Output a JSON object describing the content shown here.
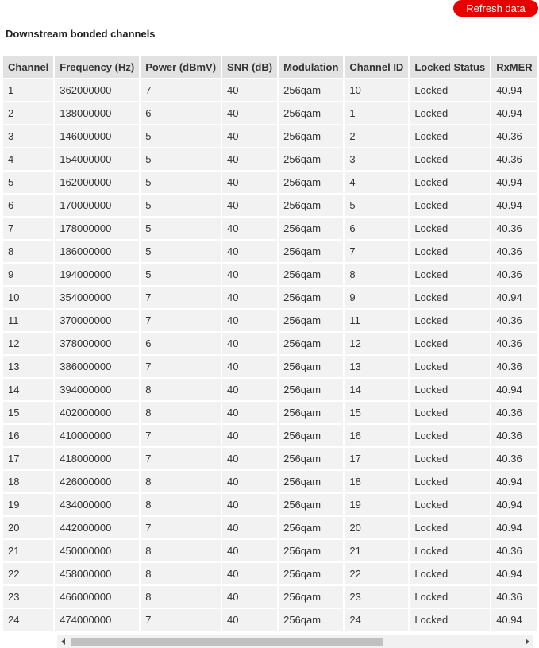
{
  "header": {
    "button": "Refresh data",
    "title": "Downstream bonded channels"
  },
  "table": {
    "columns": [
      "Channel",
      "Frequency (Hz)",
      "Power (dBmV)",
      "SNR (dB)",
      "Modulation",
      "Channel ID",
      "Locked Status",
      "RxMER"
    ],
    "rows": [
      [
        "1",
        "362000000",
        "7",
        "40",
        "256qam",
        "10",
        "Locked",
        "40.94"
      ],
      [
        "2",
        "138000000",
        "6",
        "40",
        "256qam",
        "1",
        "Locked",
        "40.94"
      ],
      [
        "3",
        "146000000",
        "5",
        "40",
        "256qam",
        "2",
        "Locked",
        "40.36"
      ],
      [
        "4",
        "154000000",
        "5",
        "40",
        "256qam",
        "3",
        "Locked",
        "40.36"
      ],
      [
        "5",
        "162000000",
        "5",
        "40",
        "256qam",
        "4",
        "Locked",
        "40.94"
      ],
      [
        "6",
        "170000000",
        "5",
        "40",
        "256qam",
        "5",
        "Locked",
        "40.94"
      ],
      [
        "7",
        "178000000",
        "5",
        "40",
        "256qam",
        "6",
        "Locked",
        "40.36"
      ],
      [
        "8",
        "186000000",
        "5",
        "40",
        "256qam",
        "7",
        "Locked",
        "40.36"
      ],
      [
        "9",
        "194000000",
        "5",
        "40",
        "256qam",
        "8",
        "Locked",
        "40.36"
      ],
      [
        "10",
        "354000000",
        "7",
        "40",
        "256qam",
        "9",
        "Locked",
        "40.94"
      ],
      [
        "11",
        "370000000",
        "7",
        "40",
        "256qam",
        "11",
        "Locked",
        "40.36"
      ],
      [
        "12",
        "378000000",
        "6",
        "40",
        "256qam",
        "12",
        "Locked",
        "40.36"
      ],
      [
        "13",
        "386000000",
        "7",
        "40",
        "256qam",
        "13",
        "Locked",
        "40.36"
      ],
      [
        "14",
        "394000000",
        "8",
        "40",
        "256qam",
        "14",
        "Locked",
        "40.94"
      ],
      [
        "15",
        "402000000",
        "8",
        "40",
        "256qam",
        "15",
        "Locked",
        "40.36"
      ],
      [
        "16",
        "410000000",
        "7",
        "40",
        "256qam",
        "16",
        "Locked",
        "40.36"
      ],
      [
        "17",
        "418000000",
        "7",
        "40",
        "256qam",
        "17",
        "Locked",
        "40.36"
      ],
      [
        "18",
        "426000000",
        "8",
        "40",
        "256qam",
        "18",
        "Locked",
        "40.94"
      ],
      [
        "19",
        "434000000",
        "8",
        "40",
        "256qam",
        "19",
        "Locked",
        "40.94"
      ],
      [
        "20",
        "442000000",
        "7",
        "40",
        "256qam",
        "20",
        "Locked",
        "40.94"
      ],
      [
        "21",
        "450000000",
        "8",
        "40",
        "256qam",
        "21",
        "Locked",
        "40.36"
      ],
      [
        "22",
        "458000000",
        "8",
        "40",
        "256qam",
        "22",
        "Locked",
        "40.94"
      ],
      [
        "23",
        "466000000",
        "8",
        "40",
        "256qam",
        "23",
        "Locked",
        "40.36"
      ],
      [
        "24",
        "474000000",
        "7",
        "40",
        "256qam",
        "24",
        "Locked",
        "40.94"
      ]
    ]
  }
}
